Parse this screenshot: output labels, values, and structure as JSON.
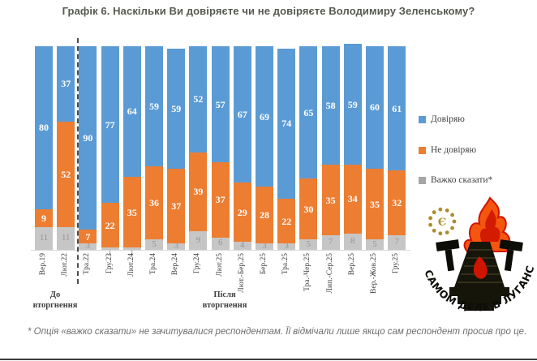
{
  "title": "Графік 6. Наскільки Ви довіряєте чи не довіряєте Володимиру Зеленському?",
  "chart_data": {
    "type": "bar",
    "subtype": "stacked-100",
    "title": "Графік 6. Наскільки Ви довіряєте чи не довіряєте Володимиру Зеленському?",
    "categories": [
      "Вер.19",
      "Лют.22",
      "Тра.22",
      "Гру.23",
      "Лют.24",
      "Тра.24",
      "Вер.24",
      "Гру.24",
      "Лют.25",
      "Лют.-Бер.25",
      "Бер.25",
      "Тра.25",
      "Тра.-Чер.25",
      "Лип.-Сер.25",
      "Вер.25",
      "Вер.-Жов.25",
      "Гру.25"
    ],
    "series": [
      {
        "name": "Довіряю",
        "color": "#5b9bd5",
        "values": [
          80,
          37,
          90,
          77,
          64,
          59,
          59,
          52,
          57,
          67,
          69,
          74,
          65,
          58,
          59,
          60,
          61
        ]
      },
      {
        "name": "Не довіряю",
        "color": "#ed7d31",
        "values": [
          9,
          52,
          7,
          22,
          35,
          36,
          37,
          39,
          37,
          29,
          28,
          22,
          30,
          35,
          34,
          35,
          32
        ]
      },
      {
        "name": "Важко сказати*",
        "color": "#c6c6c6",
        "legend_color": "#a6a6a6",
        "values": [
          11,
          11,
          3,
          1,
          1,
          5,
          3,
          9,
          6,
          4,
          3,
          3,
          5,
          7,
          8,
          5,
          7
        ]
      }
    ],
    "groups": [
      {
        "label": "До вторгнення",
        "from": 0,
        "to": 1
      },
      {
        "label": "Після вторгнення",
        "from": 2,
        "to": 16
      }
    ],
    "separator_after_index": 1,
    "ylim": [
      0,
      100
    ],
    "value_labels": "inside-center",
    "grid": false,
    "legend_position": "right"
  },
  "footnote": "* Опція «важко сказати» не зачитувалися респондентам. Її відмічали лише якщо сам респондент просив про це.",
  "logo": {
    "arc_text": "НА САМОМ ДЕЛЕ В ЛУГАНСКЕ",
    "flame_color": "#f4550f",
    "flame_accent": "#cf1500",
    "body_color": "#16150a",
    "gold_color": "#ad8c2e"
  }
}
